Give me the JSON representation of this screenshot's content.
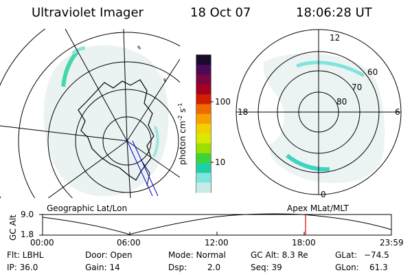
{
  "header": {
    "title": "Ultraviolet Imager",
    "date": "18 Oct 07",
    "time": "18:06:28 UT"
  },
  "maps": {
    "left_caption": "Geographic Lat/Lon",
    "right_caption": "Apex MLat/MLT",
    "mlt_labels": {
      "top": "12",
      "left": "18",
      "right": "6",
      "bottom": "0"
    },
    "mlat_labels": [
      "60",
      "70",
      "80"
    ]
  },
  "colorbar": {
    "unit_label": "photon cm",
    "unit_sup1": "-2",
    "unit_mid": "s",
    "unit_sup2": "-1",
    "tick_100": "100",
    "tick_10": "10",
    "colors": [
      "#1a0b2a",
      "#4b0a54",
      "#7a0540",
      "#a6001e",
      "#d21e00",
      "#ef6a00",
      "#f6a100",
      "#f2d000",
      "#d7ea00",
      "#9adf00",
      "#3fd33b",
      "#1fcfa6",
      "#7fe4de",
      "#c7ece8"
    ]
  },
  "alt_plot": {
    "ylabel": "GC Alt",
    "ymax": "9.0",
    "ymin": "1.8",
    "xticks": [
      "00:00",
      "06:00",
      "12:00",
      "18:00",
      "23:59"
    ],
    "marker_color": "#d40000"
  },
  "footer": {
    "flt": "Flt: LBHL",
    "ip": "IP: 36.0",
    "door": "Door: Open",
    "gain": "Gain: 14",
    "mode": "Mode: Normal",
    "dsp_label": "Dsp:",
    "dsp_value": "2.0",
    "gcalt": "GC Alt: 8.3 Re",
    "seq": "Seq: 39",
    "glat_label": "GLat:",
    "glat_value": "−74.5",
    "glon_label": "GLon:",
    "glon_value": "61.3"
  }
}
